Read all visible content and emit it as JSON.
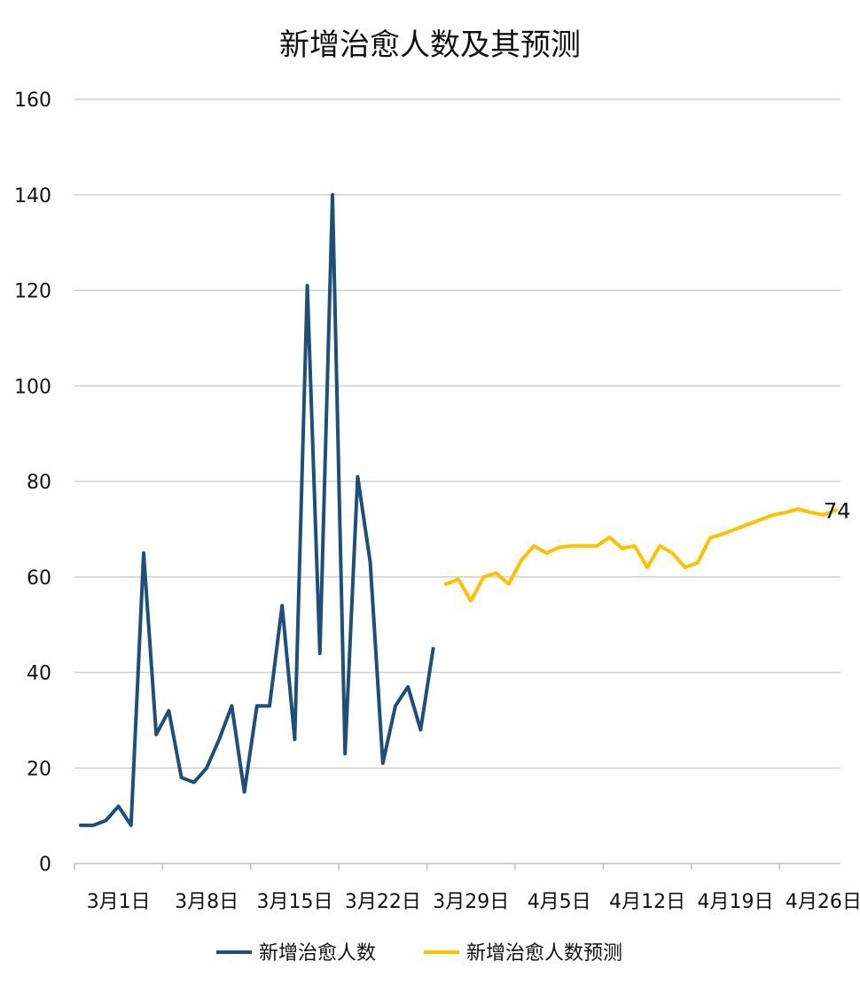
{
  "chart_data": {
    "type": "line",
    "title": "新增治愈人数及其预测",
    "xlabel": "",
    "ylabel": "",
    "ylim": [
      0,
      160
    ],
    "y_ticks": [
      0,
      20,
      40,
      60,
      80,
      100,
      120,
      140,
      160
    ],
    "grid": true,
    "legend_position": "bottom",
    "x_tick_labels": [
      "3月1日",
      "3月8日",
      "3月15日",
      "3月22日",
      "3月29日",
      "4月5日",
      "4月12日",
      "4月19日",
      "4月26日"
    ],
    "x_tick_indices": [
      0,
      7,
      14,
      21,
      28,
      35,
      42,
      49,
      56
    ],
    "dates": [
      "3月1日",
      "3月2日",
      "3月3日",
      "3月4日",
      "3月5日",
      "3月6日",
      "3月7日",
      "3月8日",
      "3月9日",
      "3月10日",
      "3月11日",
      "3月12日",
      "3月13日",
      "3月14日",
      "3月15日",
      "3月16日",
      "3月17日",
      "3月18日",
      "3月19日",
      "3月20日",
      "3月21日",
      "3月22日",
      "3月23日",
      "3月24日",
      "3月25日",
      "3月26日",
      "3月27日",
      "3月28日",
      "3月29日",
      "3月30日",
      "3月31日",
      "4月1日",
      "4月2日",
      "4月3日",
      "4月4日",
      "4月5日",
      "4月6日",
      "4月7日",
      "4月8日",
      "4月9日",
      "4月10日",
      "4月11日",
      "4月12日",
      "4月13日",
      "4月14日",
      "4月15日",
      "4月16日",
      "4月17日",
      "4月18日",
      "4月19日",
      "4月20日",
      "4月21日",
      "4月22日",
      "4月23日",
      "4月24日",
      "4月25日",
      "4月26日",
      "4月27日",
      "4月28日",
      "4月29日",
      "4月30日"
    ],
    "series": [
      {
        "name": "新增治愈人数",
        "color": "#1f4e79",
        "values": [
          8,
          8,
          9,
          12,
          8,
          65,
          27,
          32,
          18,
          17,
          20,
          26,
          33,
          15,
          33,
          33,
          54,
          26,
          121,
          44,
          140,
          23,
          81,
          63,
          21,
          33,
          37,
          28,
          45,
          null,
          null,
          null,
          null,
          null,
          null,
          null,
          null,
          null,
          null,
          null,
          null,
          null,
          null,
          null,
          null,
          null,
          null,
          null,
          null,
          null,
          null,
          null,
          null,
          null,
          null,
          null,
          null,
          null,
          null,
          null,
          null
        ]
      },
      {
        "name": "新增治愈人数预测",
        "color": "#ffc000",
        "values": [
          null,
          null,
          null,
          null,
          null,
          null,
          null,
          null,
          null,
          null,
          null,
          null,
          null,
          null,
          null,
          null,
          null,
          null,
          null,
          null,
          null,
          null,
          null,
          null,
          null,
          null,
          null,
          null,
          null,
          58.5,
          59.5,
          55,
          60,
          60.8,
          58.5,
          63.5,
          66.5,
          65,
          66.2,
          66.5,
          66.5,
          66.5,
          68.3,
          66,
          66.5,
          62,
          66.5,
          65,
          62,
          63,
          68.2,
          69,
          70,
          71,
          72,
          73,
          73.5,
          74.2,
          73.5,
          73,
          74
        ]
      }
    ],
    "data_labels": [
      {
        "series": "新增治愈人数预测",
        "date": "4月30日",
        "text": "74"
      }
    ]
  }
}
